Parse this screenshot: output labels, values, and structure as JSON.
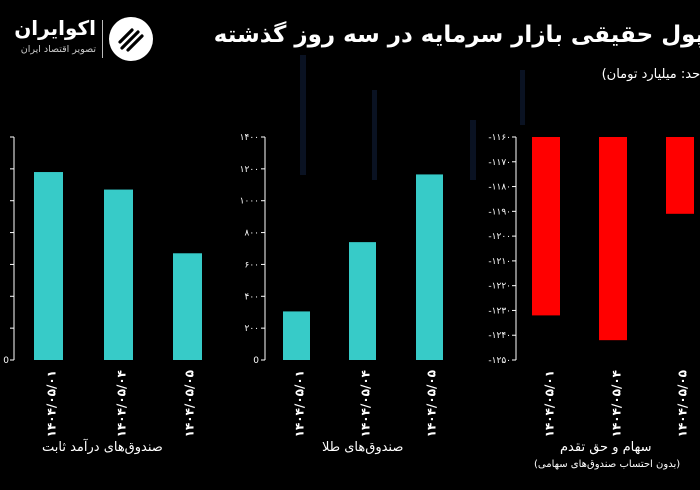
{
  "header": {
    "title": "جریان پول حقیقی بازار سرمایه در سه روز گذشته",
    "unit": "واحد: میلیارد تومان)",
    "logo_name": "اکوایران",
    "logo_tagline": "تصویر اقتصاد ایران"
  },
  "colors": {
    "background": "#000000",
    "teal": "#37CBC8",
    "red": "#FF0000",
    "axis": "#ffffff"
  },
  "chart_data": [
    {
      "type": "bar",
      "title": "صندوق‌های درآمد ثابت",
      "categories": [
        "۱۴۰۴/۰۵/۰۱",
        "۱۴۰۴/۰۵/۰۴",
        "۱۴۰۴/۰۵/۰۵"
      ],
      "values": [
        5900,
        5350,
        3350
      ],
      "ylim": [
        0,
        7000
      ],
      "yticks": [
        0,
        1000,
        2000,
        3000,
        4000,
        5000,
        6000,
        7000
      ],
      "ytick_labels": [
        "0",
        "",
        "",
        "",
        "",
        "",
        "",
        ""
      ],
      "color": "#37CBC8"
    },
    {
      "type": "bar",
      "title": "صندوق‌های طلا",
      "categories": [
        "۱۴۰۴/۰۵/۰۱",
        "۱۴۰۴/۰۵/۰۴",
        "۱۴۰۴/۰۵/۰۵"
      ],
      "values": [
        305,
        740,
        1165
      ],
      "ylim": [
        0,
        1400
      ],
      "yticks": [
        0,
        200,
        400,
        600,
        800,
        1000,
        1200,
        1400
      ],
      "ytick_labels": [
        "0",
        "۲۰۰",
        "۴۰۰",
        "۶۰۰",
        "۸۰۰",
        "۱۰۰۰",
        "۱۲۰۰",
        "۱۴۰۰"
      ],
      "color": "#37CBC8"
    },
    {
      "type": "bar",
      "title": "سهام و حق تقدم",
      "subtitle": "(بدون احتساب صندوق‌های سهامی)",
      "categories": [
        "۱۴۰۴/۰۵/۰۱",
        "۱۴۰۴/۰۵/۰۴",
        "۱۴۰۴/۰۵/۰۵"
      ],
      "values": [
        -1232,
        -1242,
        -1191
      ],
      "ylim": [
        -1250,
        -1160
      ],
      "yticks": [
        -1160,
        -1170,
        -1180,
        -1190,
        -1200,
        -1210,
        -1220,
        -1230,
        -1240,
        -1250
      ],
      "ytick_labels": [
        "-۱۱۶۰",
        "-۱۱۷۰",
        "-۱۱۸۰",
        "-۱۱۹۰",
        "-۱۲۰۰",
        "-۱۲۱۰",
        "-۱۲۲۰",
        "-۱۲۳۰",
        "-۱۲۴۰",
        "-۱۲۵۰"
      ],
      "color": "#FF0000"
    }
  ]
}
